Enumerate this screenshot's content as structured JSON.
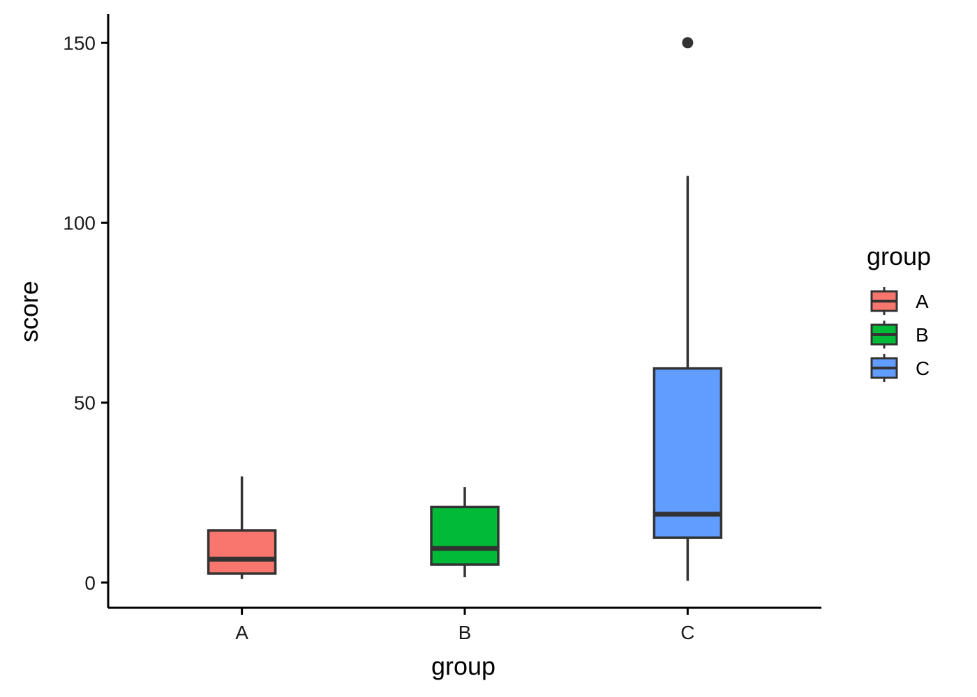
{
  "chart_data": {
    "type": "boxplot",
    "xlabel": "group",
    "ylabel": "score",
    "ylim": [
      -7,
      158
    ],
    "y_ticks": [
      0,
      50,
      100,
      150
    ],
    "categories": [
      "A",
      "B",
      "C"
    ],
    "legend": {
      "title": "group",
      "position": "right",
      "entries": [
        "A",
        "B",
        "C"
      ]
    },
    "colors": {
      "A": "#F8766D",
      "B": "#00BA38",
      "C": "#619CFF",
      "box_outline": "#333333"
    },
    "boxes": [
      {
        "category": "A",
        "whisker_low": 1,
        "q1": 2.5,
        "median": 6.5,
        "q3": 14.5,
        "whisker_high": 29.5,
        "outliers": []
      },
      {
        "category": "B",
        "whisker_low": 1.5,
        "q1": 5,
        "median": 9.5,
        "q3": 21,
        "whisker_high": 26.5,
        "outliers": []
      },
      {
        "category": "C",
        "whisker_low": 0.5,
        "q1": 12.5,
        "median": 19,
        "q3": 59.5,
        "whisker_high": 113,
        "outliers": [
          150
        ]
      }
    ],
    "grid": false
  }
}
